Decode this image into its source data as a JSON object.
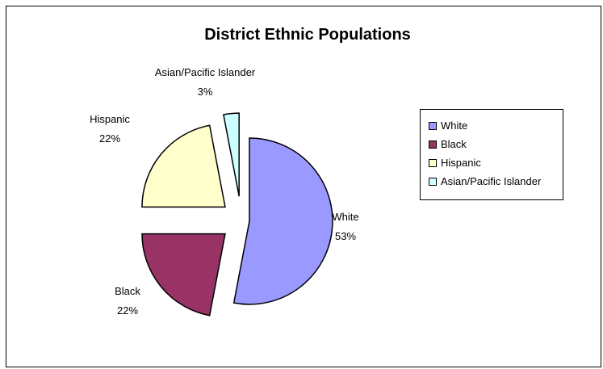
{
  "chart_data": {
    "type": "pie",
    "title": "District Ethnic Populations",
    "exploded": true,
    "legend_position": "right",
    "slices": [
      {
        "label": "White",
        "value": 53,
        "percent_label": "53%",
        "color": "#9999ff"
      },
      {
        "label": "Black",
        "value": 22,
        "percent_label": "22%",
        "color": "#993366"
      },
      {
        "label": "Hispanic",
        "value": 22,
        "percent_label": "22%",
        "color": "#ffffcc"
      },
      {
        "label": "Asian/Pacific Islander",
        "value": 3,
        "percent_label": "3%",
        "color": "#ccffff"
      }
    ]
  }
}
